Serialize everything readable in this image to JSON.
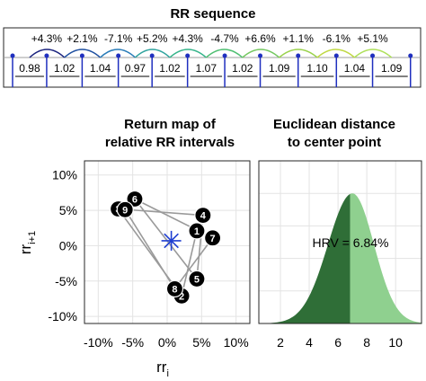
{
  "chart_data": [
    {
      "type": "line",
      "title": "RR sequence",
      "rr_intervals": [
        "0.98",
        "1.02",
        "1.04",
        "0.97",
        "1.02",
        "1.07",
        "1.02",
        "1.09",
        "1.10",
        "1.04",
        "1.09"
      ],
      "relative_changes": [
        "+4.3%",
        "+2.1%",
        "-7.1%",
        "+5.2%",
        "+4.3%",
        "-4.7%",
        "+6.6%",
        "+1.1%",
        "-6.1%",
        "+5.1%"
      ],
      "arc_colors": [
        "#1a237e",
        "#1e4fa0",
        "#2a7cb8",
        "#2fa39e",
        "#35b48a",
        "#4fbf72",
        "#74c860",
        "#9ad24c",
        "#c0d844",
        "#aee05a"
      ]
    },
    {
      "type": "scatter",
      "title": [
        "Return map of",
        "relative RR intervals"
      ],
      "xlabel": "rr",
      "xlabel_sub": "i",
      "ylabel": "rr",
      "ylabel_sub": "i+1",
      "xlim": [
        -12,
        12
      ],
      "ylim": [
        -11,
        12
      ],
      "xticks": [
        -10,
        -5,
        0,
        5,
        10
      ],
      "xtick_labels": [
        "-10%",
        "-5%",
        "0%",
        "5%",
        "10%"
      ],
      "yticks": [
        10,
        5,
        0,
        -5,
        -10
      ],
      "ytick_labels": [
        "10%",
        "5%",
        "0%",
        "-5%",
        "-10%"
      ],
      "grid": true,
      "points": [
        {
          "label": "1",
          "x": 4.3,
          "y": 2.1
        },
        {
          "label": "2",
          "x": 2.1,
          "y": -7.1
        },
        {
          "label": "3",
          "x": -7.1,
          "y": 5.2
        },
        {
          "label": "4",
          "x": 5.2,
          "y": 4.3
        },
        {
          "label": "5",
          "x": 4.3,
          "y": -4.7
        },
        {
          "label": "6",
          "x": -4.7,
          "y": 6.6
        },
        {
          "label": "7",
          "x": 6.6,
          "y": 1.1
        },
        {
          "label": "8",
          "x": 1.1,
          "y": -6.1
        },
        {
          "label": "9",
          "x": -6.1,
          "y": 5.1
        }
      ],
      "center": {
        "x": 0.6,
        "y": 0.7
      },
      "center_color": "#1f3fd1"
    },
    {
      "type": "area",
      "title": [
        "Euclidean distance",
        "to center point"
      ],
      "xlim": [
        0.5,
        11.8
      ],
      "ylim": [
        0,
        1.0
      ],
      "xticks": [
        2,
        4,
        6,
        8,
        10
      ],
      "xtick_labels": [
        "2",
        "4",
        "6",
        "8",
        "10"
      ],
      "grid": true,
      "distribution": {
        "mode": 7.0,
        "sigma_left": 1.7,
        "sigma_right": 1.5,
        "peak": 0.8
      },
      "split_at": 6.84,
      "annotation": "HRV = 6.84%",
      "colors": {
        "left": "#2f6e37",
        "right": "#8fd08f"
      }
    }
  ]
}
